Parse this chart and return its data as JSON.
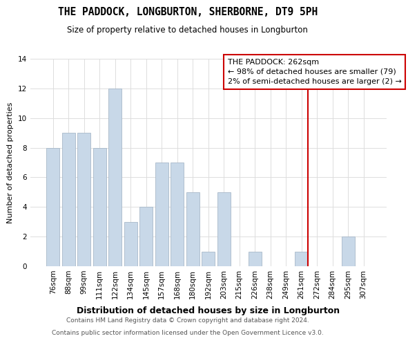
{
  "title": "THE PADDOCK, LONGBURTON, SHERBORNE, DT9 5PH",
  "subtitle": "Size of property relative to detached houses in Longburton",
  "xlabel": "Distribution of detached houses by size in Longburton",
  "ylabel": "Number of detached properties",
  "bar_labels": [
    "76sqm",
    "88sqm",
    "99sqm",
    "111sqm",
    "122sqm",
    "134sqm",
    "145sqm",
    "157sqm",
    "168sqm",
    "180sqm",
    "192sqm",
    "203sqm",
    "215sqm",
    "226sqm",
    "238sqm",
    "249sqm",
    "261sqm",
    "272sqm",
    "284sqm",
    "295sqm",
    "307sqm"
  ],
  "bar_values": [
    8,
    9,
    9,
    8,
    12,
    3,
    4,
    7,
    7,
    5,
    1,
    5,
    0,
    1,
    0,
    0,
    1,
    0,
    0,
    2,
    0
  ],
  "bar_color": "#c8d8e8",
  "bar_edge_color": "#a8b8c8",
  "vline_color": "#cc0000",
  "vline_x_index": 16,
  "ylim": [
    0,
    14
  ],
  "yticks": [
    0,
    2,
    4,
    6,
    8,
    10,
    12,
    14
  ],
  "legend_title": "THE PADDOCK: 262sqm",
  "legend_line1": "← 98% of detached houses are smaller (79)",
  "legend_line2": "2% of semi-detached houses are larger (2) →",
  "legend_box_color": "#ffffff",
  "legend_box_edge_color": "#cc0000",
  "footer_line1": "Contains HM Land Registry data © Crown copyright and database right 2024.",
  "footer_line2": "Contains public sector information licensed under the Open Government Licence v3.0.",
  "background_color": "#ffffff",
  "grid_color": "#dddddd",
  "title_fontsize": 10.5,
  "subtitle_fontsize": 8.5,
  "ylabel_fontsize": 8,
  "xlabel_fontsize": 9,
  "tick_fontsize": 7.5,
  "legend_fontsize": 8,
  "footer_fontsize": 6.5
}
